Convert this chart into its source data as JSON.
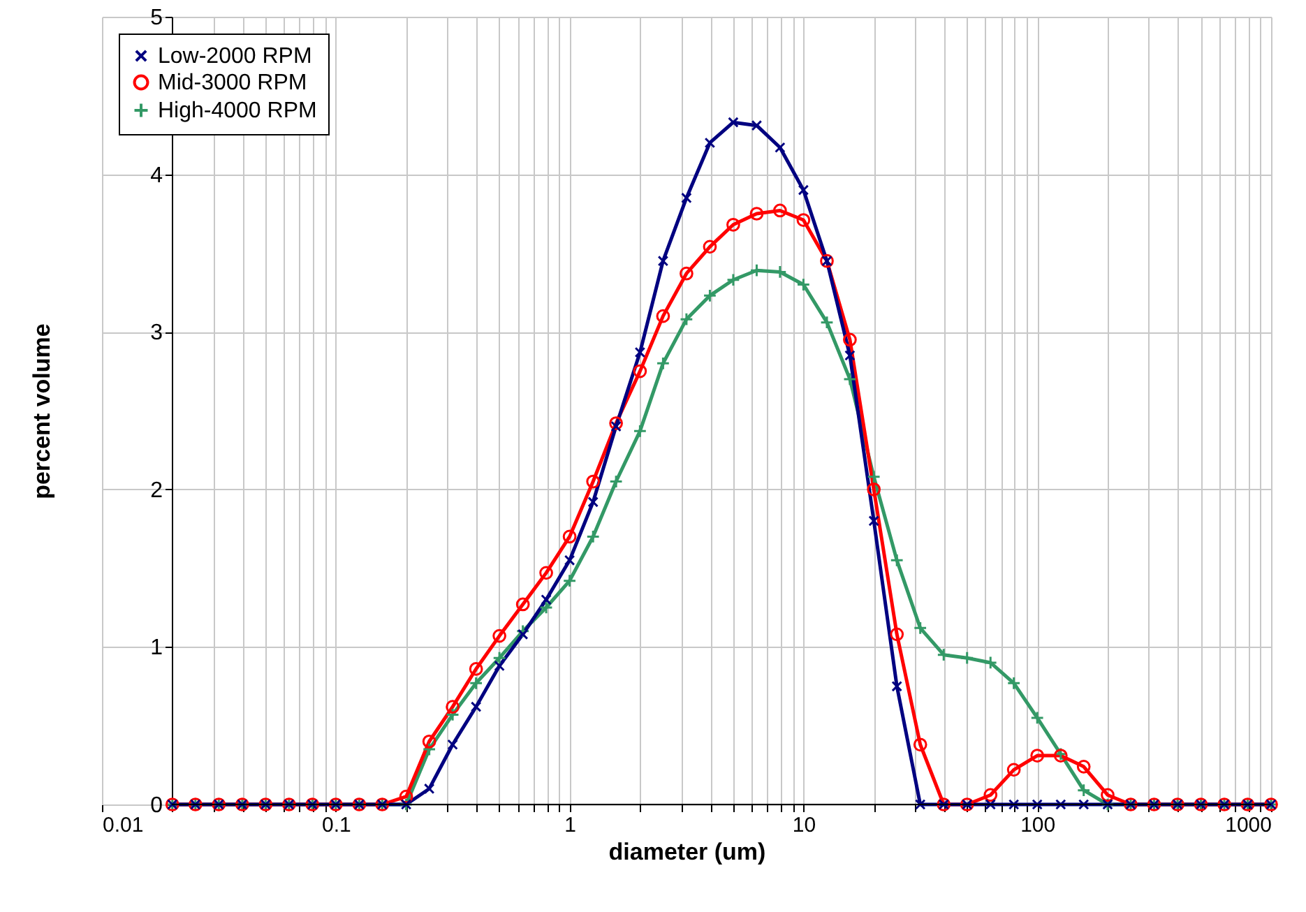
{
  "chart_data": {
    "type": "line",
    "xlabel": "diameter (um)",
    "ylabel": "percent volume",
    "log": "x",
    "grid": true,
    "legend": "top left",
    "x": [
      0.02,
      0.0251,
      0.0316,
      0.0398,
      0.0501,
      0.0631,
      0.0794,
      0.1,
      0.126,
      0.158,
      0.2,
      0.251,
      0.316,
      0.398,
      0.501,
      0.631,
      0.794,
      1,
      1.26,
      1.58,
      2,
      2.51,
      3.16,
      3.98,
      5.01,
      6.31,
      7.94,
      10,
      12.6,
      15.8,
      20,
      25.1,
      31.6,
      39.8,
      50.1,
      63.1,
      79.4,
      100,
      126,
      158,
      200,
      251,
      316,
      398,
      501,
      631,
      794,
      1000
    ],
    "series": [
      {
        "name": "Low-2000 RPM",
        "color": "#000080",
        "marker": "cross",
        "values": [
          0,
          0,
          0,
          0,
          0,
          0,
          0,
          0,
          0,
          0,
          0,
          0.1,
          0.38,
          0.62,
          0.88,
          1.08,
          1.3,
          1.55,
          1.92,
          2.4,
          2.87,
          3.45,
          3.85,
          4.2,
          4.33,
          4.31,
          4.17,
          3.9,
          3.45,
          2.85,
          1.8,
          0.75,
          0,
          0,
          0,
          0,
          0,
          0,
          0,
          0,
          0,
          0,
          0,
          0,
          0,
          0,
          0,
          0
        ]
      },
      {
        "name": "Mid-3000 RPM",
        "color": "#ff0000",
        "marker": "circle",
        "values": [
          0,
          0,
          0,
          0,
          0,
          0,
          0,
          0,
          0,
          0,
          0.05,
          0.4,
          0.62,
          0.86,
          1.07,
          1.27,
          1.47,
          1.7,
          2.05,
          2.42,
          2.75,
          3.1,
          3.37,
          3.54,
          3.68,
          3.75,
          3.77,
          3.71,
          3.45,
          2.95,
          2.0,
          1.08,
          0.38,
          0,
          0,
          0.06,
          0.22,
          0.31,
          0.31,
          0.24,
          0.06,
          0,
          0,
          0,
          0,
          0,
          0,
          0
        ]
      },
      {
        "name": "High-4000 RPM",
        "color": "#339966",
        "marker": "cross",
        "values": [
          0,
          0,
          0,
          0,
          0,
          0,
          0,
          0,
          0,
          0,
          0,
          0.35,
          0.57,
          0.77,
          0.93,
          1.1,
          1.25,
          1.42,
          1.7,
          2.05,
          2.37,
          2.8,
          3.08,
          3.23,
          3.33,
          3.39,
          3.38,
          3.3,
          3.06,
          2.7,
          2.08,
          1.55,
          1.12,
          0.95,
          0.93,
          0.9,
          0.77,
          0.55,
          0.32,
          0.09,
          0,
          0,
          0,
          0,
          0,
          0,
          0,
          0
        ]
      }
    ],
    "xlim": [
      0.01,
      1000
    ],
    "xticks": [
      0.01,
      {
        "value": 0.02,
        "label": null
      },
      {
        "value": 0.03,
        "label": null
      },
      {
        "value": 0.04,
        "label": null
      },
      {
        "value": 0.05,
        "label": null
      },
      {
        "value": 0.06,
        "label": null
      },
      {
        "value": 0.07,
        "label": null
      },
      {
        "value": 0.08,
        "label": null
      },
      {
        "value": 0.09,
        "label": null
      },
      0.1,
      {
        "value": 0.2,
        "label": null
      },
      {
        "value": 0.3,
        "label": null
      },
      {
        "value": 0.4,
        "label": null
      },
      {
        "value": 0.5,
        "label": null
      },
      {
        "value": 0.6,
        "label": null
      },
      {
        "value": 0.7,
        "label": null
      },
      {
        "value": 0.8,
        "label": null
      },
      {
        "value": 0.9,
        "label": null
      },
      1,
      {
        "value": 2,
        "label": null
      },
      {
        "value": 3,
        "label": null
      },
      {
        "value": 4,
        "label": null
      },
      {
        "value": 5,
        "label": null
      },
      {
        "value": 6,
        "label": null
      },
      {
        "value": 7,
        "label": null
      },
      {
        "value": 8,
        "label": null
      },
      {
        "value": 9,
        "label": null
      },
      10,
      {
        "value": 20,
        "label": null
      },
      {
        "value": 30,
        "label": null
      },
      {
        "value": 40,
        "label": null
      },
      {
        "value": 50,
        "label": null
      },
      {
        "value": 60,
        "label": null
      },
      {
        "value": 70,
        "label": null
      },
      {
        "value": 80,
        "label": null
      },
      {
        "value": 90,
        "label": null
      },
      100,
      {
        "value": 200,
        "label": null
      },
      {
        "value": 300,
        "label": null
      },
      {
        "value": 400,
        "label": null
      },
      {
        "value": 500,
        "label": null
      },
      {
        "value": 600,
        "label": null
      },
      {
        "value": 700,
        "label": null
      },
      {
        "value": 800,
        "label": null
      },
      {
        "value": 900,
        "label": null
      },
      1000
    ],
    "ylim": [
      0,
      5
    ],
    "yticks": [
      0,
      1,
      2,
      3,
      4,
      5
    ]
  }
}
